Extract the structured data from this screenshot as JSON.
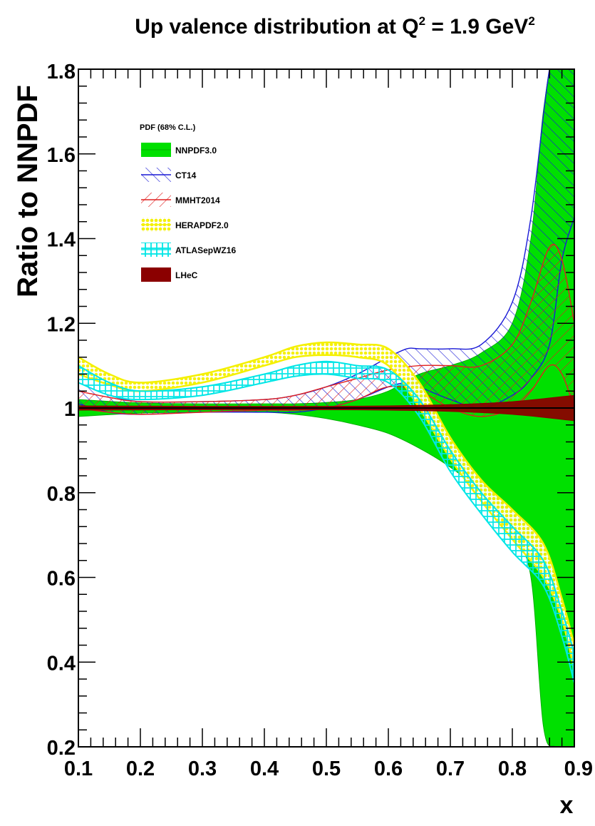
{
  "chart_data": {
    "type": "area",
    "title_main": "Up valence distribution at Q",
    "title_sup1": "2",
    "title_mid": " = 1.9 GeV",
    "title_sup2": "2",
    "xlabel": "x",
    "ylabel": "Ratio to NNPDF",
    "xlim": [
      0.1,
      0.9
    ],
    "ylim": [
      0.2,
      1.8
    ],
    "x_ticks": [
      0.1,
      0.2,
      0.3,
      0.4,
      0.5,
      0.6,
      0.7,
      0.8,
      0.9
    ],
    "x_tick_labels": [
      "0.1",
      "0.2",
      "0.3",
      "0.4",
      "0.5",
      "0.6",
      "0.7",
      "0.8",
      "0.9"
    ],
    "y_ticks": [
      0.2,
      0.4,
      0.6,
      0.8,
      1.0,
      1.2,
      1.4,
      1.6,
      1.8
    ],
    "y_tick_labels": [
      "0.2",
      "0.4",
      "0.6",
      "0.8",
      "1",
      "1.2",
      "1.4",
      "1.6",
      "1.8"
    ],
    "legend_title": "PDF (68% C.L.)",
    "legend_position": "top-left",
    "grid": false,
    "series": [
      {
        "name": "NNPDF3.0",
        "style": "solid",
        "color": "#00e000",
        "x": [
          0.1,
          0.2,
          0.3,
          0.4,
          0.45,
          0.5,
          0.55,
          0.6,
          0.65,
          0.7,
          0.75,
          0.8,
          0.83,
          0.85,
          0.87,
          0.9
        ],
        "upper": [
          1.02,
          1.012,
          1.01,
          1.01,
          1.01,
          1.013,
          1.02,
          1.04,
          1.08,
          1.1,
          1.13,
          1.2,
          1.4,
          1.7,
          1.85,
          1.85
        ],
        "lower": [
          0.98,
          0.988,
          0.99,
          0.99,
          0.985,
          0.975,
          0.96,
          0.94,
          0.905,
          0.86,
          0.8,
          0.7,
          0.6,
          0.25,
          0.2,
          0.2
        ]
      },
      {
        "name": "CT14",
        "style": "hatch",
        "color": "#1a1ad6",
        "x": [
          0.1,
          0.15,
          0.2,
          0.3,
          0.4,
          0.45,
          0.5,
          0.55,
          0.6,
          0.63,
          0.65,
          0.7,
          0.75,
          0.8,
          0.83,
          0.86,
          0.88,
          0.9
        ],
        "upper": [
          1.06,
          1.03,
          1.015,
          1.015,
          1.02,
          1.03,
          1.05,
          1.08,
          1.12,
          1.14,
          1.14,
          1.14,
          1.15,
          1.25,
          1.45,
          1.8,
          1.85,
          1.85
        ],
        "lower": [
          1.01,
          0.99,
          0.985,
          0.99,
          0.99,
          0.99,
          1.0,
          1.02,
          1.05,
          1.06,
          1.05,
          1.02,
          1.0,
          1.03,
          1.07,
          1.15,
          1.35,
          1.45
        ]
      },
      {
        "name": "MMHT2014",
        "style": "hatch",
        "color": "#e02020",
        "x": [
          0.1,
          0.15,
          0.2,
          0.3,
          0.4,
          0.45,
          0.5,
          0.55,
          0.6,
          0.65,
          0.7,
          0.75,
          0.8,
          0.83,
          0.86,
          0.88,
          0.9
        ],
        "upper": [
          1.04,
          1.025,
          1.015,
          1.015,
          1.02,
          1.03,
          1.05,
          1.07,
          1.09,
          1.1,
          1.1,
          1.1,
          1.15,
          1.25,
          1.38,
          1.35,
          1.2
        ],
        "lower": [
          1.0,
          0.99,
          0.985,
          0.99,
          0.995,
          0.995,
          1.0,
          1.02,
          1.05,
          1.04,
          1.0,
          0.98,
          1.0,
          1.04,
          1.1,
          1.08,
          1.0
        ]
      },
      {
        "name": "HERAPDF2.0",
        "style": "crosshatch",
        "color": "#f4f000",
        "x": [
          0.1,
          0.15,
          0.2,
          0.3,
          0.4,
          0.45,
          0.5,
          0.55,
          0.6,
          0.65,
          0.7,
          0.75,
          0.8,
          0.85,
          0.88,
          0.9
        ],
        "upper": [
          1.12,
          1.08,
          1.06,
          1.08,
          1.12,
          1.145,
          1.155,
          1.15,
          1.14,
          1.06,
          0.93,
          0.83,
          0.76,
          0.68,
          0.55,
          0.44
        ],
        "lower": [
          1.08,
          1.055,
          1.04,
          1.06,
          1.1,
          1.12,
          1.125,
          1.12,
          1.1,
          1.0,
          0.88,
          0.78,
          0.69,
          0.6,
          0.5,
          0.38
        ]
      },
      {
        "name": "ATLASepWZ16",
        "style": "crosshatch",
        "color": "#00e6e6",
        "x": [
          0.1,
          0.15,
          0.2,
          0.3,
          0.4,
          0.45,
          0.5,
          0.55,
          0.6,
          0.65,
          0.7,
          0.75,
          0.8,
          0.85,
          0.88,
          0.9
        ],
        "upper": [
          1.1,
          1.06,
          1.04,
          1.05,
          1.08,
          1.1,
          1.11,
          1.1,
          1.09,
          1.02,
          0.9,
          0.8,
          0.72,
          0.64,
          0.52,
          0.42
        ],
        "lower": [
          1.06,
          1.03,
          1.02,
          1.03,
          1.06,
          1.075,
          1.08,
          1.07,
          1.06,
          0.98,
          0.85,
          0.75,
          0.66,
          0.58,
          0.46,
          0.35
        ]
      },
      {
        "name": "LHeC",
        "style": "solid",
        "color": "#8b0000",
        "x": [
          0.1,
          0.3,
          0.5,
          0.6,
          0.7,
          0.8,
          0.9
        ],
        "upper": [
          1.005,
          1.004,
          1.004,
          1.005,
          1.008,
          1.015,
          1.03
        ],
        "lower": [
          0.995,
          0.996,
          0.996,
          0.995,
          0.992,
          0.985,
          0.97
        ]
      }
    ]
  }
}
